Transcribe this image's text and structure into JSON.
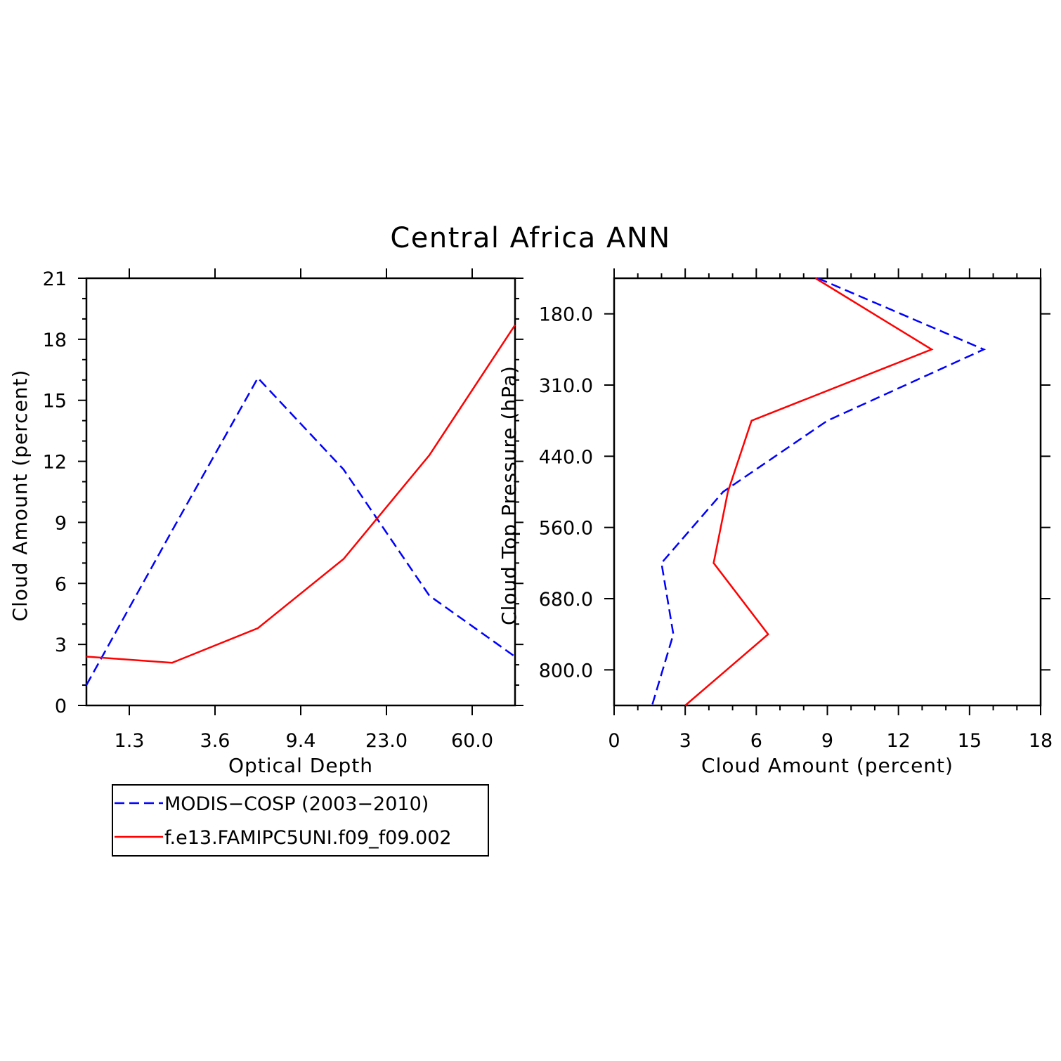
{
  "title": "Central Africa ANN",
  "colors": {
    "obs": "#0000ff",
    "model": "#ff0000"
  },
  "legend": {
    "placement": "below-left",
    "entries": [
      {
        "label": "MODIS−COSP (2003−2010)",
        "color": "#0000ff",
        "style": "dashed"
      },
      {
        "label": "f.e13.FAMIPC5UNI.f09_f09.002",
        "color": "#ff0000",
        "style": "solid"
      }
    ]
  },
  "chart_data": [
    {
      "type": "line",
      "xlabel": "Optical Depth",
      "ylabel": "Cloud Amount (percent)",
      "x_tick_labels": [
        "1.3",
        "3.6",
        "9.4",
        "23.0",
        "60.0"
      ],
      "x_bins": [
        1,
        2,
        3,
        4,
        5,
        6
      ],
      "ylim": [
        0,
        21
      ],
      "y_ticks": [
        "0",
        "3",
        "6",
        "9",
        "12",
        "15",
        "18",
        "21"
      ],
      "grid": false,
      "series": [
        {
          "name": "MODIS−COSP (2003−2010)",
          "color": "#0000ff",
          "style": "dashed",
          "values": [
            1.0,
            8.6,
            16.1,
            11.6,
            5.4,
            2.4
          ]
        },
        {
          "name": "f.e13.FAMIPC5UNI.f09_f09.002",
          "color": "#ff0000",
          "style": "solid",
          "values": [
            2.4,
            2.1,
            3.8,
            7.2,
            12.3,
            18.7
          ]
        }
      ]
    },
    {
      "type": "line",
      "xlabel": "Cloud Amount (percent)",
      "ylabel": "Cloud Top Pressure (hPa)",
      "xlim": [
        0,
        18
      ],
      "x_ticks": [
        "0",
        "3",
        "6",
        "9",
        "12",
        "15",
        "18"
      ],
      "y_tick_labels": [
        "180.0",
        "310.0",
        "440.0",
        "560.0",
        "680.0",
        "800.0"
      ],
      "y_bins": [
        1,
        2,
        3,
        4,
        5,
        6,
        7
      ],
      "grid": false,
      "series": [
        {
          "name": "MODIS−COSP (2003−2010)",
          "color": "#0000ff",
          "style": "dashed",
          "values": [
            15.6,
            9.0,
            4.6,
            2.0,
            2.5,
            1.6
          ]
        },
        {
          "name": "f.e13.FAMIPC5UNI.f09_f09.002",
          "color": "#ff0000",
          "style": "solid",
          "values": [
            13.4,
            5.8,
            4.8,
            4.2,
            6.5,
            3.0
          ]
        }
      ],
      "edge_values": {
        "top": {
          "obs": 8.6,
          "model": 8.5
        },
        "bottom": {
          "obs": 1.6,
          "model": 3.0
        }
      }
    }
  ]
}
